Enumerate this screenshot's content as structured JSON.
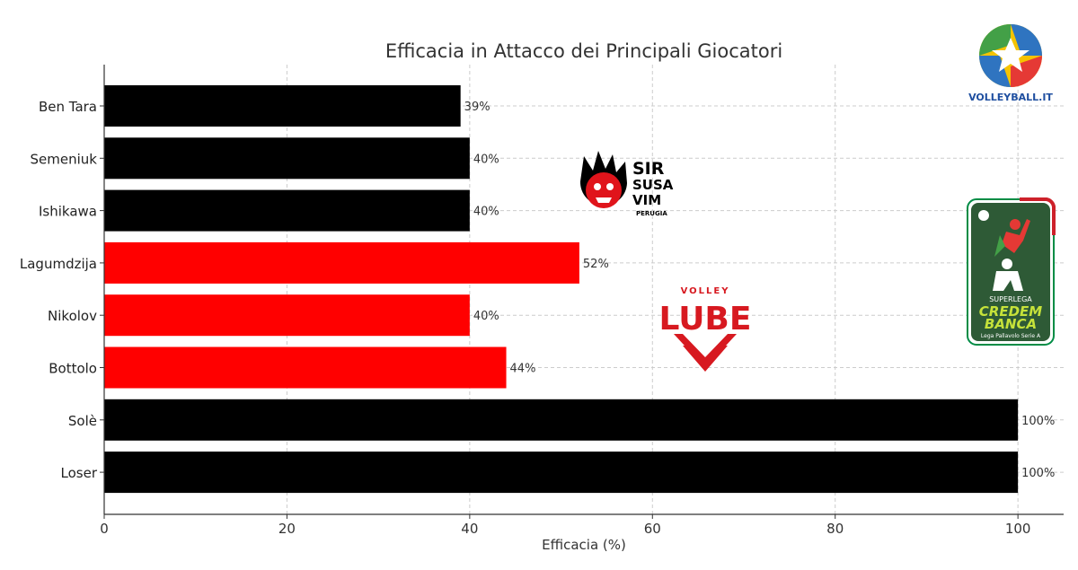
{
  "chart_data": {
    "type": "bar",
    "orientation": "horizontal",
    "title": "Efficacia in Attacco dei Principali Giocatori",
    "xlabel": "Efficacia (%)",
    "ylabel": "",
    "xlim": [
      0,
      105
    ],
    "xticks": [
      0,
      20,
      40,
      60,
      80,
      100
    ],
    "grid": true,
    "categories": [
      "Ben Tara",
      "Semeniuk",
      "Ishikawa",
      "Lagumdzija",
      "Nikolov",
      "Bottolo",
      "Solè",
      "Loser"
    ],
    "values": [
      39,
      40,
      40,
      52,
      40,
      44,
      100,
      100
    ],
    "value_labels": [
      "39%",
      "40%",
      "40%",
      "52%",
      "40%",
      "44%",
      "100%",
      "100%"
    ],
    "bar_colors": [
      "#000000",
      "#000000",
      "#000000",
      "#ff0000",
      "#ff0000",
      "#ff0000",
      "#000000",
      "#000000"
    ]
  },
  "logos": {
    "volleyball_it": "VOLLEYBALL.IT",
    "sir": [
      "SIR",
      "SUSA",
      "VIM",
      "PERUGIA"
    ],
    "lube": [
      "VOLLEY",
      "LUBE"
    ],
    "superlega": [
      "SUPERLEGA",
      "CREDEM",
      "BANCA",
      "Lega Pallavolo Serie A"
    ]
  },
  "colors": {
    "accent_red": "#ff0000",
    "bar_black": "#000000",
    "superlega_green": "#2e5a36"
  }
}
